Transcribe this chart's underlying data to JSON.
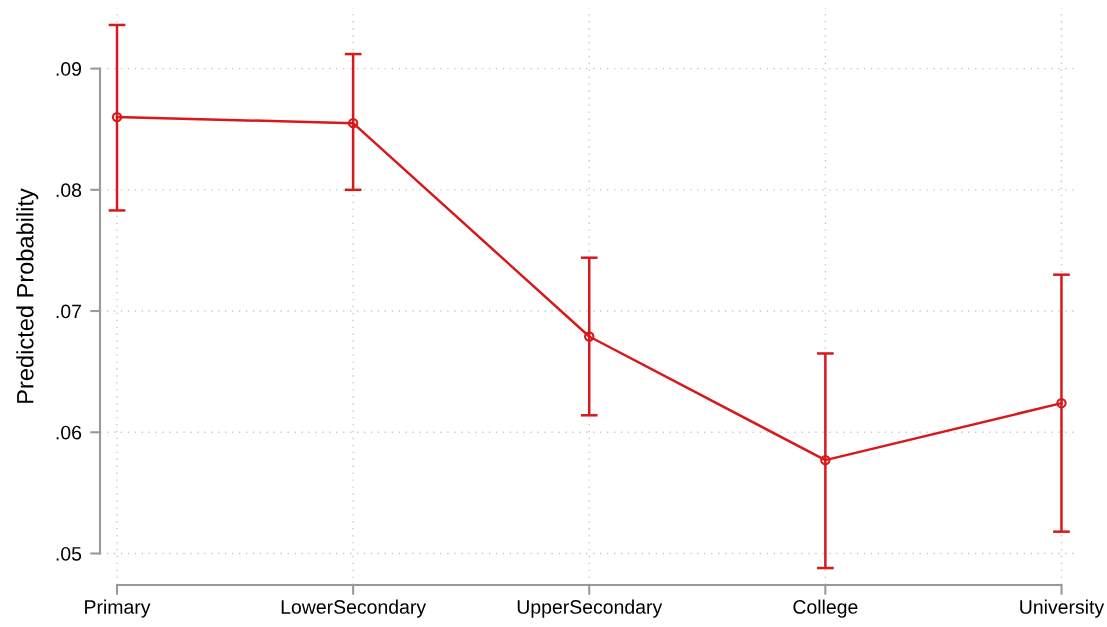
{
  "chart_data": {
    "type": "line",
    "ylabel": "Predicted Probability",
    "categories": [
      "Primary",
      "LowerSecondary",
      "UpperSecondary",
      "College",
      "University"
    ],
    "series": [
      {
        "color": "#d7191c",
        "values": [
          0.086,
          0.0855,
          0.0679,
          0.0577,
          0.0624
        ],
        "errors": [
          [
            0.0783,
            0.0936
          ],
          [
            0.08,
            0.0912
          ],
          [
            0.0614,
            0.0744
          ],
          [
            0.0488,
            0.0665
          ],
          [
            0.0518,
            0.073
          ]
        ]
      }
    ],
    "ylim": [
      0.0474,
      0.095
    ],
    "yticks": [
      {
        "value": 0.05,
        "label": ".05"
      },
      {
        "value": 0.06,
        "label": ".06"
      },
      {
        "value": 0.07,
        "label": ".07"
      },
      {
        "value": 0.08,
        "label": ".08"
      },
      {
        "value": 0.09,
        "label": ".09"
      }
    ],
    "grid": true,
    "marker": "circle",
    "line_style": "solid"
  }
}
